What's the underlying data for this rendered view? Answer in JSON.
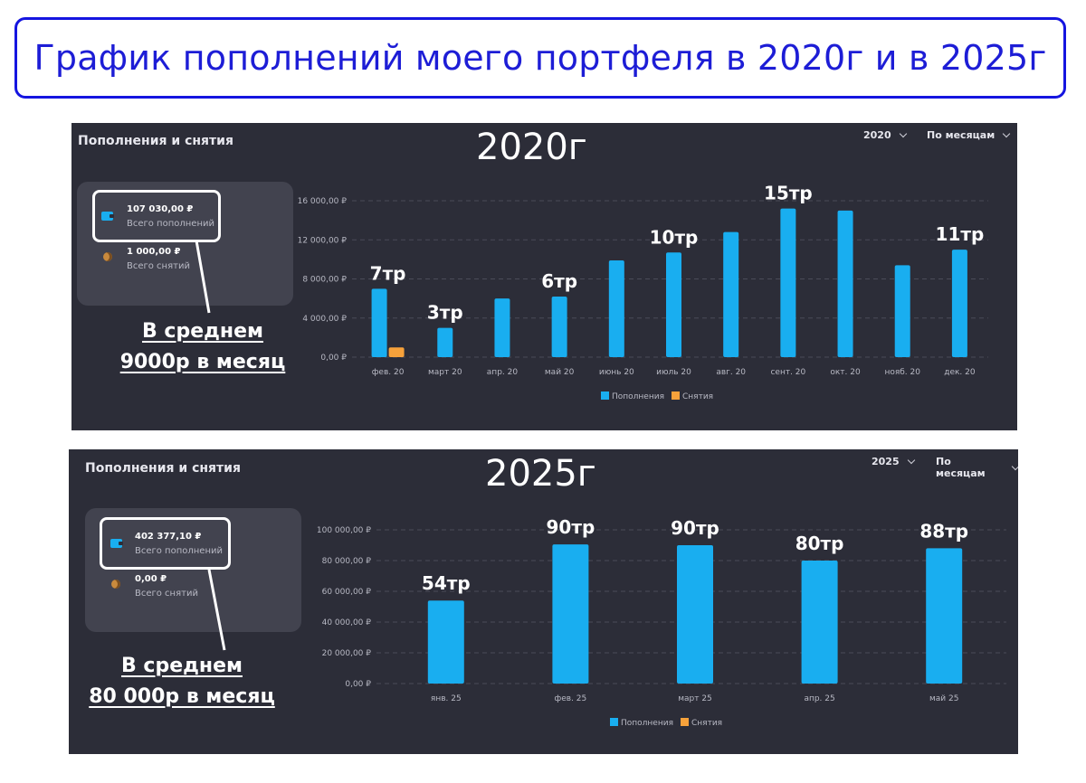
{
  "header": {
    "title": "График пополнений моего портфеля в 2020г и в 2025г"
  },
  "colors": {
    "deposit": "#19aef0",
    "withdrawal": "#f7a23b",
    "panel": "#2c2d38",
    "card": "#42434f",
    "title_border": "#1515e0"
  },
  "panels": [
    {
      "title": "Пополнения и снятия",
      "year_label": "2020г",
      "year_select": "2020",
      "period_select": "По месяцам",
      "summary": {
        "deposits_value": "107 030,00 ₽",
        "deposits_label": "Всего пополнений",
        "withdrawals_value": "1 000,00 ₽",
        "withdrawals_label": "Всего снятий",
        "wallet_icon": "wallet-icon",
        "coin_icon": "coin-icon"
      },
      "average": {
        "line1": "В среднем",
        "line2": "9000р в месяц"
      },
      "legend": {
        "deposits": "Пополнения",
        "withdrawals": "Снятия"
      },
      "chart_data": {
        "type": "bar",
        "categories": [
          "фев. 20",
          "март 20",
          "апр. 20",
          "май 20",
          "июнь 20",
          "июль 20",
          "авг. 20",
          "сент. 20",
          "окт. 20",
          "нояб. 20",
          "дек. 20"
        ],
        "series": [
          {
            "name": "Пополнения",
            "values": [
              7000,
              3000,
              6000,
              6200,
              9900,
              10700,
              12800,
              15200,
              15000,
              9400,
              11000
            ]
          },
          {
            "name": "Снятия",
            "values": [
              1000,
              0,
              0,
              0,
              0,
              0,
              0,
              0,
              0,
              0,
              0
            ]
          }
        ],
        "ylim": [
          0,
          16000
        ],
        "y_ticks": [
          0,
          4000,
          8000,
          12000,
          16000
        ],
        "y_tick_labels": [
          "0,00 ₽",
          "4 000,00 ₽",
          "8 000,00 ₽",
          "12 000,00 ₽",
          "16 000,00 ₽"
        ],
        "grid": true,
        "legend_position": "bottom",
        "annotations": [
          {
            "category": "фев. 20",
            "text": "7тр"
          },
          {
            "category": "март 20",
            "text": "3тр"
          },
          {
            "category": "май 20",
            "text": "6тр"
          },
          {
            "category": "июль 20",
            "text": "10тр"
          },
          {
            "category": "сент. 20",
            "text": "15тр"
          },
          {
            "category": "дек. 20",
            "text": "11тр"
          }
        ]
      }
    },
    {
      "title": "Пополнения и снятия",
      "year_label": "2025г",
      "year_select": "2025",
      "period_select": "По месяцам",
      "summary": {
        "deposits_value": "402 377,10 ₽",
        "deposits_label": "Всего пополнений",
        "withdrawals_value": "0,00 ₽",
        "withdrawals_label": "Всего снятий",
        "wallet_icon": "wallet-icon",
        "coin_icon": "coin-icon"
      },
      "average": {
        "line1": "В среднем",
        "line2": "80 000р в месяц"
      },
      "legend": {
        "deposits": "Пополнения",
        "withdrawals": "Снятия"
      },
      "chart_data": {
        "type": "bar",
        "categories": [
          "янв. 25",
          "фев. 25",
          "март 25",
          "апр. 25",
          "май 25"
        ],
        "series": [
          {
            "name": "Пополнения",
            "values": [
              54000,
              90500,
              90000,
              80000,
              88000
            ]
          },
          {
            "name": "Снятия",
            "values": [
              0,
              0,
              0,
              0,
              0
            ]
          }
        ],
        "ylim": [
          0,
          100000
        ],
        "y_ticks": [
          0,
          20000,
          40000,
          60000,
          80000,
          100000
        ],
        "y_tick_labels": [
          "0,00 ₽",
          "20 000,00 ₽",
          "40 000,00 ₽",
          "60 000,00 ₽",
          "80 000,00 ₽",
          "100 000,00 ₽"
        ],
        "grid": true,
        "legend_position": "bottom",
        "annotations": [
          {
            "category": "янв. 25",
            "text": "54тр"
          },
          {
            "category": "фев. 25",
            "text": "90тр"
          },
          {
            "category": "март 25",
            "text": "90тр"
          },
          {
            "category": "апр. 25",
            "text": "80тр"
          },
          {
            "category": "май 25",
            "text": "88тр"
          }
        ]
      }
    }
  ]
}
